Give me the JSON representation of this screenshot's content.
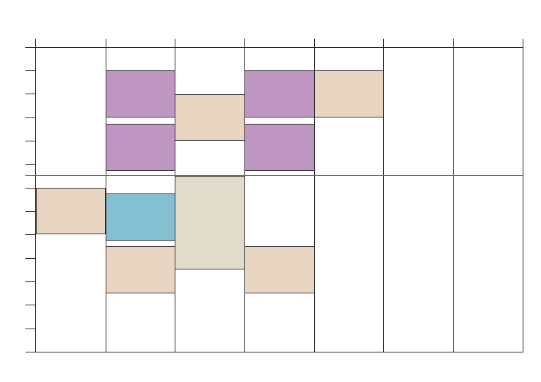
{
  "colors": {
    "purple": "#bf96c2",
    "peach": "#e9d6c2",
    "blue": "#84bfd2",
    "taupe": "#e1dbcc",
    "now_line": "#d020d0",
    "grid": "#222222"
  },
  "grid": {
    "columns": 7,
    "tick_rows": 13
  },
  "events": [
    {
      "id": "ev-1",
      "color": "purple"
    },
    {
      "id": "ev-2",
      "color": "purple"
    },
    {
      "id": "ev-3",
      "color": "blue"
    },
    {
      "id": "ev-4",
      "color": "peach"
    },
    {
      "id": "ev-5",
      "color": "peach"
    },
    {
      "id": "ev-6",
      "color": "taupe"
    },
    {
      "id": "ev-7",
      "color": "purple"
    },
    {
      "id": "ev-8",
      "color": "purple"
    },
    {
      "id": "ev-9",
      "color": "peach"
    },
    {
      "id": "ev-10",
      "color": "peach"
    },
    {
      "id": "ev-11",
      "color": "peach"
    }
  ]
}
